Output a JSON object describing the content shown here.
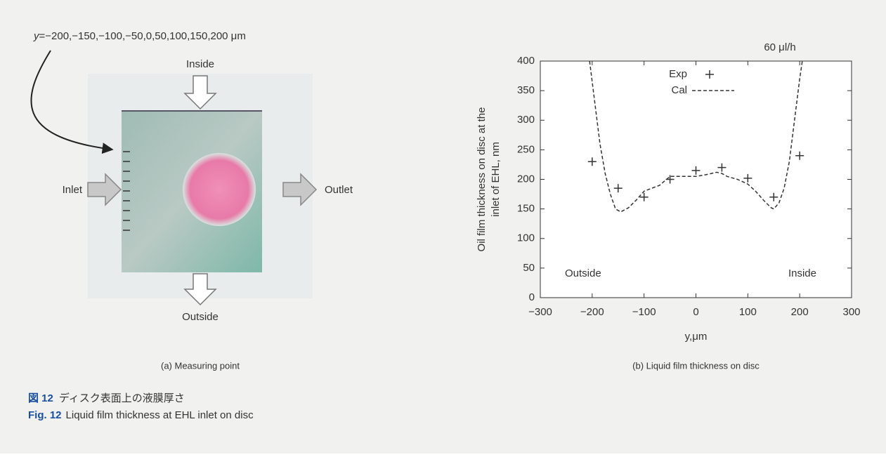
{
  "panel_a": {
    "points_variable": "y",
    "points_list": "=−200,−150,−100,−50,0,50,100,150,200 μm",
    "labels": {
      "inside": "Inside",
      "inlet": "Inlet",
      "outlet": "Outlet",
      "outside": "Outside"
    },
    "subcaption": "(a) Measuring point"
  },
  "chart_data": {
    "type": "scatter",
    "ylabel": [
      "Oil film thickness on disc at the",
      "inlet of EHL, nm"
    ],
    "xlabel": "y,μm",
    "subcaption": "(b) Liquid film thickness on disc",
    "annotations": {
      "flow": "60 μl/h",
      "left": "Outside",
      "right": "Inside"
    },
    "xlim": [
      -300,
      300
    ],
    "xticks": [
      {
        "value": -300,
        "label": "−300"
      },
      {
        "value": -200,
        "label": "−200"
      },
      {
        "value": -100,
        "label": "−100"
      },
      0,
      100,
      200,
      300
    ],
    "ylim": [
      0,
      400
    ],
    "yticks": [
      0,
      50,
      100,
      150,
      200,
      250,
      300,
      350,
      400
    ],
    "series": [
      {
        "name": "Exp",
        "type": "scatter",
        "color": "#333333",
        "x": [
          -200,
          -150,
          -100,
          -50,
          0,
          50,
          100,
          150,
          200
        ],
        "values": [
          230,
          185,
          170,
          200,
          215,
          220,
          202,
          170,
          240
        ]
      },
      {
        "name": "Cal",
        "type": "line",
        "color": "#333333",
        "x": [
          -205,
          -195,
          -185,
          -175,
          -165,
          -155,
          -145,
          -130,
          -115,
          -100,
          -85,
          -70,
          -50,
          -30,
          -10,
          0,
          20,
          40,
          50,
          60,
          80,
          100,
          115,
          130,
          145,
          150,
          160,
          170,
          180,
          190,
          200,
          205
        ],
        "values": [
          400,
          330,
          260,
          210,
          175,
          150,
          145,
          152,
          165,
          180,
          185,
          190,
          205,
          205,
          205,
          205,
          208,
          212,
          210,
          205,
          200,
          192,
          180,
          165,
          152,
          150,
          160,
          185,
          230,
          300,
          370,
          400
        ]
      }
    ]
  },
  "caption": {
    "ja_label": "図 12",
    "ja_text": "ディスク表面上の液膜厚さ",
    "en_label": "Fig. 12",
    "en_text": "Liquid film thickness at EHL inlet on disc"
  }
}
